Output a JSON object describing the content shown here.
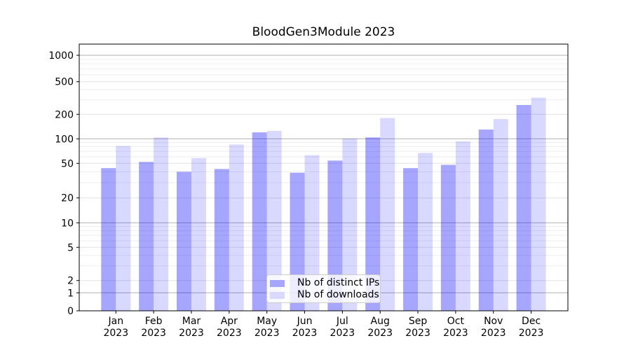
{
  "title": "BloodGen3Module 2023",
  "chart_data": {
    "type": "bar",
    "title": "BloodGen3Module 2023",
    "categories": [
      "Jan",
      "Feb",
      "Mar",
      "Apr",
      "May",
      "Jun",
      "Jul",
      "Aug",
      "Sep",
      "Oct",
      "Nov",
      "Dec"
    ],
    "category_year": "2023",
    "series": [
      {
        "name": "Nb of distinct IPs",
        "color": "#0000ff",
        "opacity": 0.35,
        "solid_hex": "#a6a6ff",
        "values": [
          44,
          52,
          40,
          43,
          120,
          39,
          54,
          104,
          44,
          48,
          130,
          260
        ]
      },
      {
        "name": "Nb of downloads",
        "color": "#0000ff",
        "opacity": 0.15,
        "solid_hex": "#d9d9ff",
        "values": [
          82,
          104,
          58,
          85,
          125,
          63,
          101,
          180,
          67,
          93,
          175,
          320
        ]
      }
    ],
    "xlabel": "",
    "ylabel": "",
    "yscale": "symlog",
    "yticks": [
      1000,
      500,
      200,
      100,
      50,
      20,
      10,
      5,
      2,
      1,
      0
    ],
    "ylim": [
      0,
      1400
    ],
    "grid": true,
    "grid_major_color": "#b0b0b0",
    "grid_mid_color": "#e2e2e2",
    "grid_minor_color": "#ededed",
    "axis_color": "#000000",
    "legend_position": "lower center"
  }
}
